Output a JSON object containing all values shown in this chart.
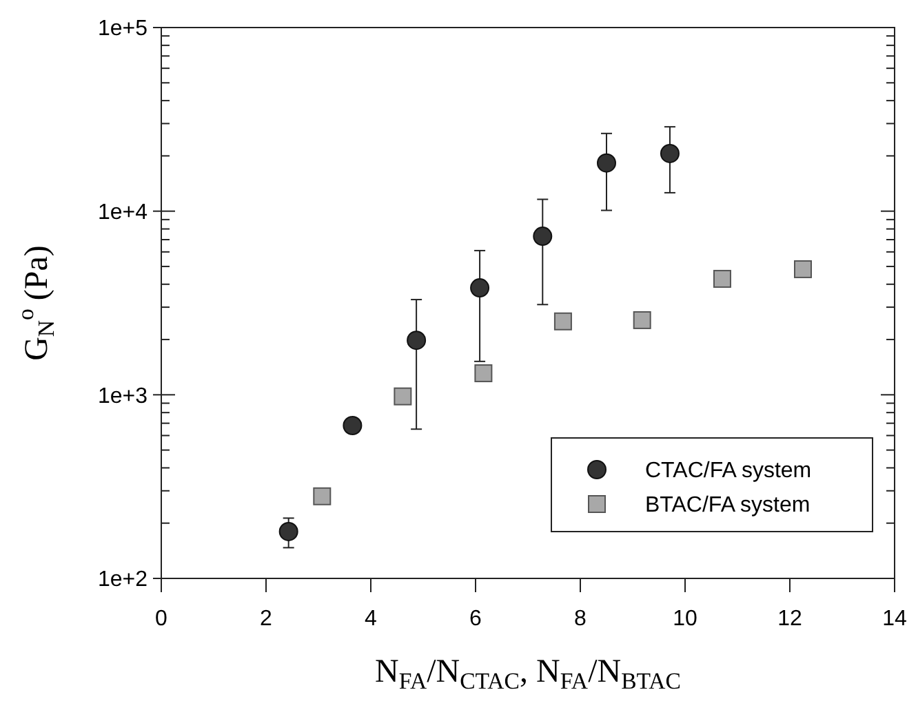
{
  "chart_data": {
    "type": "scatter",
    "xlabel": "N$_{FA}$/N$_{CTAC}$, N$_{FA}$/N$_{BTAC}$",
    "ylabel": "G$_{N}$$^{o}$ (Pa)",
    "log": "y",
    "xlim": [
      0,
      14
    ],
    "xticks": [
      0,
      2,
      4,
      6,
      8,
      10,
      12,
      14
    ],
    "ylim": [
      100,
      100000
    ],
    "yticks": [
      {
        "value": 100,
        "label": "1e+2"
      },
      {
        "value": 200,
        "label": null
      },
      {
        "value": 300,
        "label": null
      },
      {
        "value": 400,
        "label": null
      },
      {
        "value": 500,
        "label": null
      },
      {
        "value": 600,
        "label": null
      },
      {
        "value": 700,
        "label": null
      },
      {
        "value": 800,
        "label": null
      },
      {
        "value": 900,
        "label": null
      },
      {
        "value": 1000,
        "label": "1e+3"
      },
      {
        "value": 2000,
        "label": null
      },
      {
        "value": 3000,
        "label": null
      },
      {
        "value": 4000,
        "label": null
      },
      {
        "value": 5000,
        "label": null
      },
      {
        "value": 6000,
        "label": null
      },
      {
        "value": 7000,
        "label": null
      },
      {
        "value": 8000,
        "label": null
      },
      {
        "value": 9000,
        "label": null
      },
      {
        "value": 10000,
        "label": "1e+4"
      },
      {
        "value": 20000,
        "label": null
      },
      {
        "value": 30000,
        "label": null
      },
      {
        "value": 40000,
        "label": null
      },
      {
        "value": 50000,
        "label": null
      },
      {
        "value": 60000,
        "label": null
      },
      {
        "value": 70000,
        "label": null
      },
      {
        "value": 80000,
        "label": null
      },
      {
        "value": 90000,
        "label": null
      },
      {
        "value": 100000,
        "label": "1e+5"
      }
    ],
    "grid": false,
    "legend": "bottom right",
    "series": [
      {
        "name": "CTAC/FA system",
        "color": "#333333",
        "marker": "circle",
        "x": [
          2.43,
          3.65,
          4.87,
          6.08,
          7.28,
          8.5,
          9.71
        ],
        "values": [
          180,
          680,
          1980,
          3820,
          7300,
          18300,
          20600
        ],
        "errors": [
          [
            147,
            213
          ],
          null,
          [
            650,
            3300
          ],
          [
            1520,
            6100
          ],
          [
            3100,
            11600
          ],
          [
            10100,
            26500
          ],
          [
            12600,
            28800
          ]
        ]
      },
      {
        "name": "BTAC/FA system",
        "color": "#a8a8a8",
        "marker": "square",
        "x": [
          3.07,
          4.61,
          6.15,
          7.67,
          9.18,
          10.71,
          12.25
        ],
        "values": [
          280,
          980,
          1310,
          2510,
          2550,
          4280,
          4830
        ]
      }
    ]
  }
}
